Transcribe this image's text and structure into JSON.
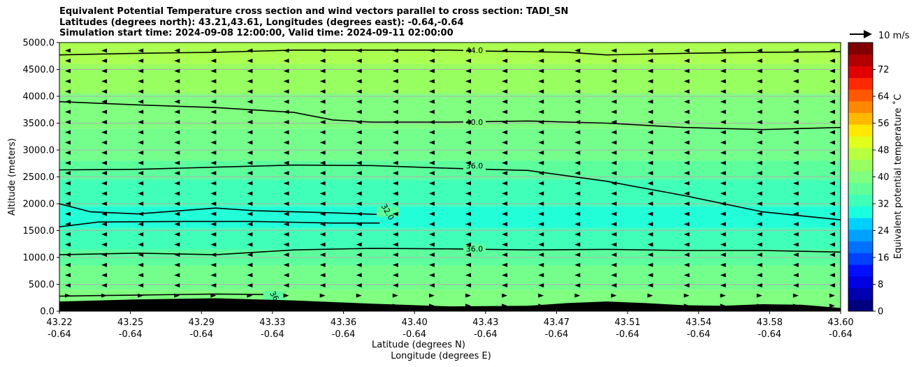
{
  "header": {
    "title_line1": "Equivalent Potential Temperature cross section and wind vectors parallel to cross section: TADI_SN",
    "title_line2": "Latitudes (degrees north): 43.21,43.61, Longitudes (degrees east): -0.64,-0.64",
    "title_line3": "Simulation start time: 2024-09-08 12:00:00, Valid time: 2024-09-11 02:00:00"
  },
  "chart_data": {
    "type": "heatmap",
    "ylabel": "Altitude (meters)",
    "xlabel_line1": "Latitude (degrees N)",
    "xlabel_line2": "Longitude (degrees E)",
    "ylim": [
      0,
      5000
    ],
    "y_ticks": [
      "0.0",
      "500.0",
      "1000.0",
      "1500.0",
      "2000.0",
      "2500.0",
      "3000.0",
      "3500.0",
      "4000.0",
      "4500.0",
      "5000.0"
    ],
    "x_ticks_lat": [
      "43.22",
      "43.25",
      "43.29",
      "43.33",
      "43.36",
      "43.40",
      "43.43",
      "43.47",
      "43.51",
      "43.54",
      "43.58",
      "43.60"
    ],
    "x_ticks_lon": [
      "-0.64",
      "-0.64",
      "-0.64",
      "-0.64",
      "-0.64",
      "-0.64",
      "-0.64",
      "-0.64",
      "-0.64",
      "-0.64",
      "-0.64",
      "-0.64"
    ],
    "grid": true,
    "colorbar": {
      "label": "Equivalent potential temperature ˚C",
      "range": [
        0,
        80
      ],
      "ticks": [
        "0",
        "8",
        "16",
        "24",
        "32",
        "40",
        "48",
        "56",
        "64",
        "72"
      ],
      "colors": [
        "#00007f",
        "#0000b0",
        "#0000e0",
        "#0010ff",
        "#0040ff",
        "#0070ff",
        "#00a0ff",
        "#00d0ff",
        "#1affe0",
        "#40ffb8",
        "#60ff98",
        "#80ff80",
        "#98ff60",
        "#b8ff40",
        "#e0ff1a",
        "#ffe800",
        "#ffb800",
        "#ff8800",
        "#ff5800",
        "#ff2800",
        "#e00000",
        "#b00000",
        "#800000"
      ]
    },
    "quiver_key": "10 m/s",
    "contours": [
      {
        "level": 44.0,
        "label": "44.0",
        "points": [
          [
            0,
            4770
          ],
          [
            0.1,
            4800
          ],
          [
            0.2,
            4820
          ],
          [
            0.3,
            4860
          ],
          [
            0.4,
            4860
          ],
          [
            0.5,
            4860
          ],
          [
            0.55,
            4840
          ],
          [
            0.65,
            4820
          ],
          [
            0.7,
            4770
          ],
          [
            0.8,
            4800
          ],
          [
            0.9,
            4820
          ],
          [
            1,
            4830
          ]
        ]
      },
      {
        "level": 40.0,
        "label": "40.0",
        "points": [
          [
            0,
            3900
          ],
          [
            0.1,
            3840
          ],
          [
            0.2,
            3790
          ],
          [
            0.3,
            3700
          ],
          [
            0.35,
            3560
          ],
          [
            0.4,
            3520
          ],
          [
            0.5,
            3520
          ],
          [
            0.6,
            3540
          ],
          [
            0.7,
            3500
          ],
          [
            0.8,
            3420
          ],
          [
            0.9,
            3380
          ],
          [
            1,
            3420
          ]
        ]
      },
      {
        "level": 36.0,
        "label": "36.0",
        "points": [
          [
            0,
            2630
          ],
          [
            0.1,
            2640
          ],
          [
            0.2,
            2680
          ],
          [
            0.25,
            2700
          ],
          [
            0.3,
            2720
          ],
          [
            0.4,
            2710
          ],
          [
            0.5,
            2660
          ],
          [
            0.6,
            2620
          ],
          [
            0.7,
            2420
          ],
          [
            0.8,
            2150
          ],
          [
            0.9,
            1850
          ],
          [
            1,
            1700
          ]
        ]
      },
      {
        "level": 36.0,
        "label": "36.0",
        "points": [
          [
            0,
            1050
          ],
          [
            0.1,
            1080
          ],
          [
            0.2,
            1050
          ],
          [
            0.3,
            1140
          ],
          [
            0.4,
            1170
          ],
          [
            0.5,
            1160
          ],
          [
            0.6,
            1140
          ],
          [
            0.7,
            1150
          ],
          [
            0.8,
            1130
          ],
          [
            0.9,
            1130
          ],
          [
            1,
            1100
          ]
        ]
      },
      {
        "level": 32.0,
        "label": "32.0",
        "points": [
          [
            0,
            2000
          ],
          [
            0.04,
            1850
          ],
          [
            0.1,
            1810
          ],
          [
            0.2,
            1920
          ],
          [
            0.25,
            1870
          ],
          [
            0.35,
            1830
          ],
          [
            0.41,
            1800
          ],
          [
            0.415,
            1770
          ]
        ]
      },
      {
        "level": 32.0,
        "label": "32.0",
        "points": [
          [
            0,
            1570
          ],
          [
            0.05,
            1660
          ],
          [
            0.15,
            1670
          ],
          [
            0.25,
            1670
          ],
          [
            0.35,
            1640
          ],
          [
            0.41,
            1640
          ]
        ]
      },
      {
        "level": 36.0,
        "label": "36",
        "points": [
          [
            0,
            280
          ],
          [
            0.1,
            300
          ],
          [
            0.2,
            320
          ],
          [
            0.27,
            310
          ]
        ]
      }
    ],
    "terrain": {
      "points": [
        [
          0,
          180
        ],
        [
          0.1,
          220
        ],
        [
          0.2,
          240
        ],
        [
          0.3,
          200
        ],
        [
          0.4,
          140
        ],
        [
          0.5,
          90
        ],
        [
          0.6,
          100
        ],
        [
          0.65,
          150
        ],
        [
          0.7,
          180
        ],
        [
          0.75,
          150
        ],
        [
          0.8,
          110
        ],
        [
          0.85,
          100
        ],
        [
          0.9,
          130
        ],
        [
          0.95,
          120
        ],
        [
          1,
          60
        ]
      ]
    },
    "wind": "mostly westward (-x) flow above 400 m, eastward near the surface"
  }
}
